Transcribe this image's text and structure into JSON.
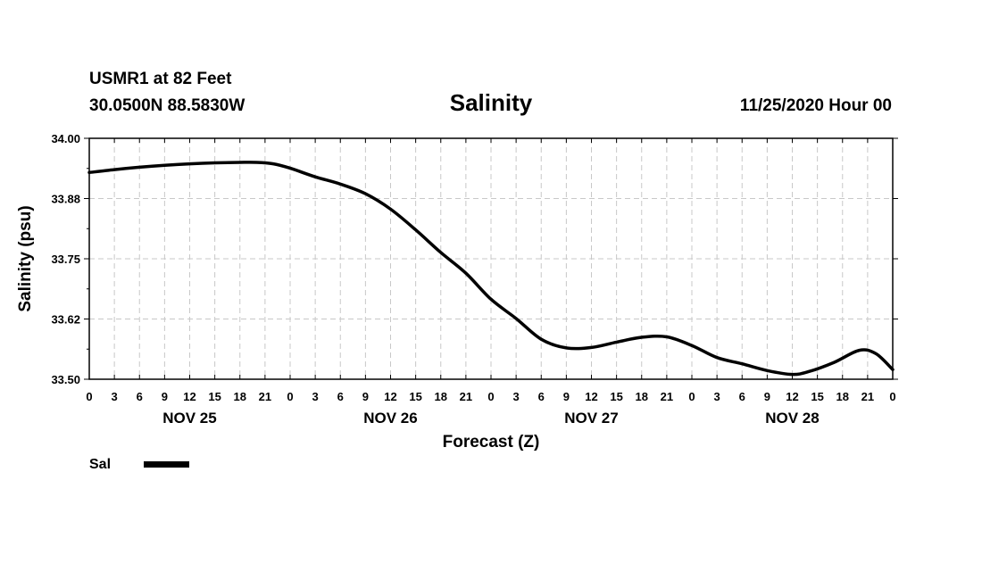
{
  "header": {
    "station": "USMR1 at 82 Feet",
    "coords": "30.0500N 88.5830W",
    "title": "Salinity",
    "date": "11/25/2020 Hour 00"
  },
  "chart_data": {
    "type": "line",
    "title": "Salinity",
    "xlabel": "Forecast (Z)",
    "ylabel": "Salinity (psu)",
    "xlim": [
      0,
      96
    ],
    "ylim": [
      33.5,
      34.0
    ],
    "y_ticks": [
      "33.50",
      "33.62",
      "33.75",
      "33.88",
      "34.00"
    ],
    "y_tick_values": [
      33.5,
      33.625,
      33.75,
      33.875,
      34.0
    ],
    "x_tick_labels": [
      "0",
      "3",
      "6",
      "9",
      "12",
      "15",
      "18",
      "21",
      "0",
      "3",
      "6",
      "9",
      "12",
      "15",
      "18",
      "21",
      "0",
      "3",
      "6",
      "9",
      "12",
      "15",
      "18",
      "21",
      "0",
      "3",
      "6",
      "9",
      "12",
      "15",
      "18",
      "21",
      "0"
    ],
    "day_labels": [
      {
        "label": "NOV 25",
        "hour": 12
      },
      {
        "label": "NOV 26",
        "hour": 36
      },
      {
        "label": "NOV 27",
        "hour": 60
      },
      {
        "label": "NOV 28",
        "hour": 84
      }
    ],
    "grid": true,
    "legend_position": "bottom-left",
    "series": [
      {
        "name": "Sal",
        "x": [
          0,
          3,
          6,
          9,
          12,
          15,
          18,
          20,
          22,
          24,
          27,
          30,
          33,
          36,
          39,
          42,
          45,
          48,
          51,
          54,
          57,
          60,
          63,
          66,
          69,
          72,
          75,
          78,
          81,
          84,
          86,
          89,
          92,
          94,
          96
        ],
        "values": [
          33.929,
          33.935,
          33.94,
          33.944,
          33.947,
          33.949,
          33.95,
          33.95,
          33.947,
          33.938,
          33.92,
          33.905,
          33.885,
          33.853,
          33.81,
          33.763,
          33.72,
          33.666,
          33.626,
          33.583,
          33.565,
          33.566,
          33.577,
          33.587,
          33.588,
          33.57,
          33.545,
          33.532,
          33.518,
          33.51,
          33.516,
          33.535,
          33.56,
          33.553,
          33.52
        ]
      }
    ]
  }
}
